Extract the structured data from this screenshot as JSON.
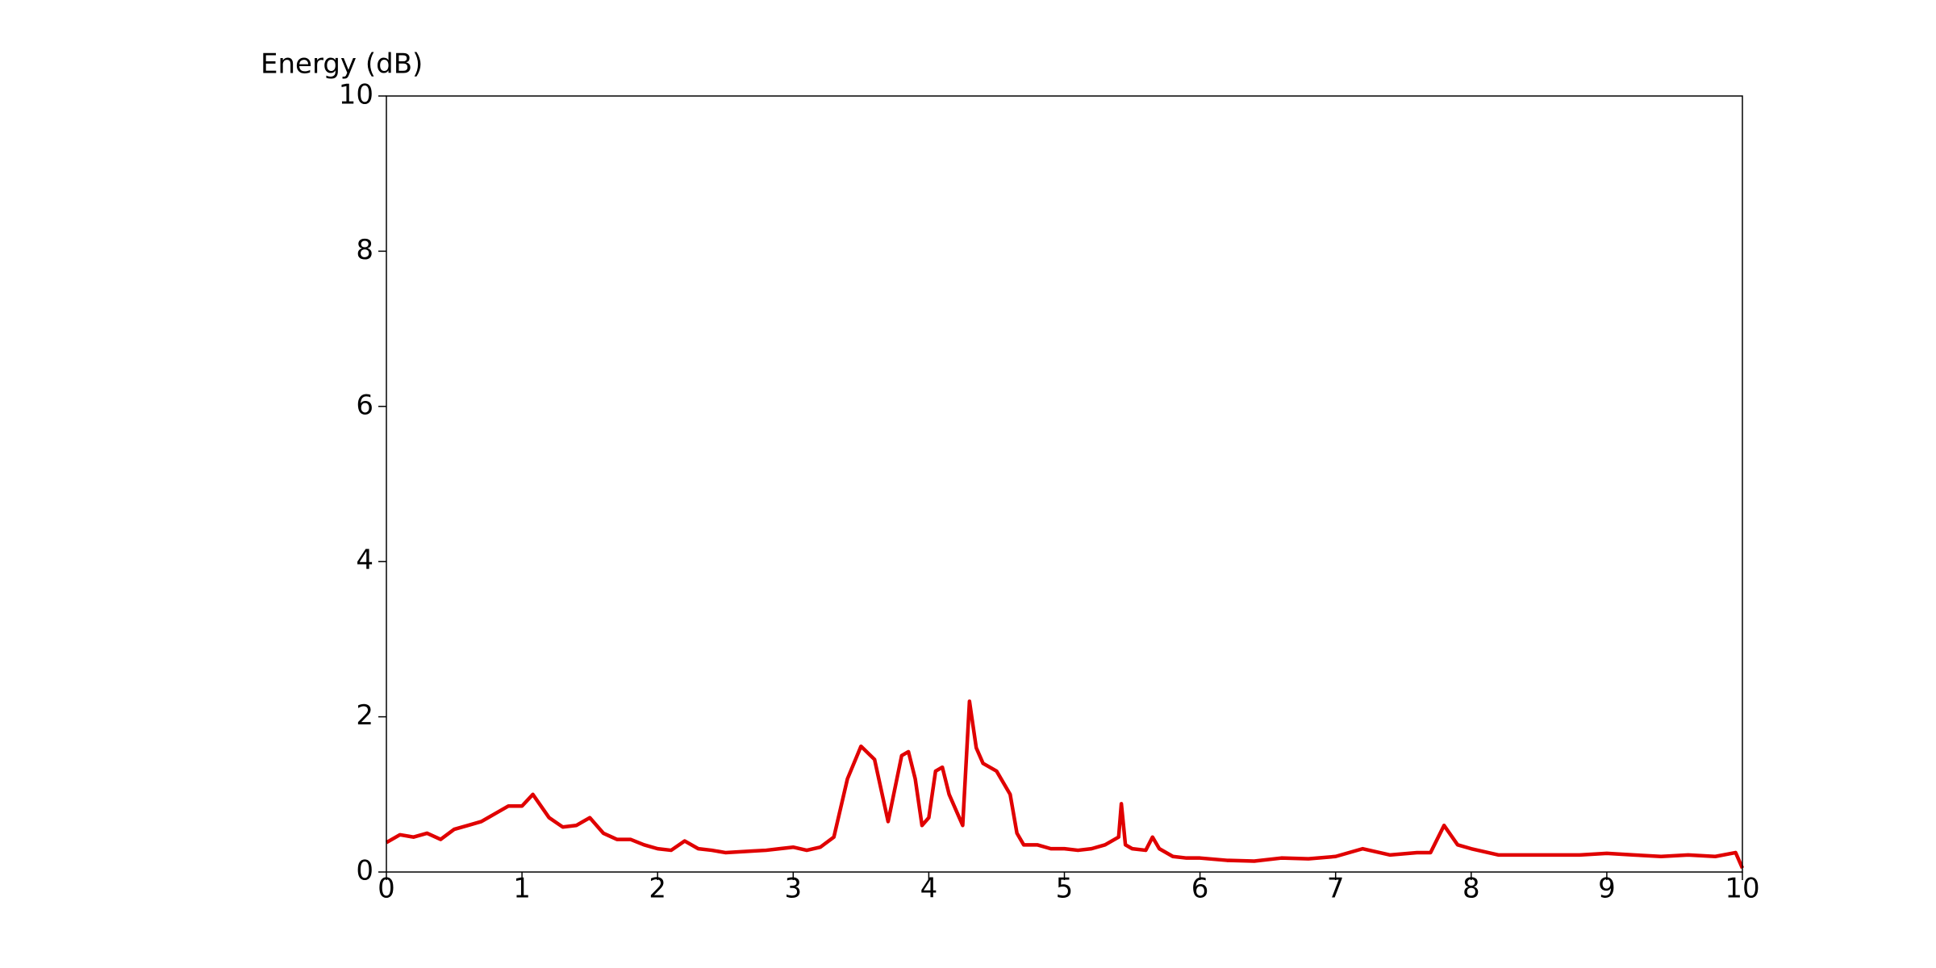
{
  "chart_data": {
    "type": "line",
    "y_label": "Energy (dB)",
    "x": [
      0,
      0.1,
      0.2,
      0.3,
      0.4,
      0.5,
      0.6,
      0.7,
      0.8,
      0.9,
      1.0,
      1.08,
      1.2,
      1.3,
      1.4,
      1.5,
      1.6,
      1.7,
      1.8,
      1.9,
      2.0,
      2.1,
      2.2,
      2.3,
      2.4,
      2.5,
      2.6,
      2.7,
      2.8,
      2.9,
      3.0,
      3.1,
      3.2,
      3.3,
      3.4,
      3.5,
      3.6,
      3.7,
      3.8,
      3.85,
      3.9,
      3.95,
      4.0,
      4.05,
      4.1,
      4.15,
      4.2,
      4.25,
      4.3,
      4.35,
      4.4,
      4.5,
      4.6,
      4.65,
      4.7,
      4.8,
      4.9,
      5.0,
      5.1,
      5.2,
      5.3,
      5.4,
      5.42,
      5.45,
      5.5,
      5.6,
      5.65,
      5.7,
      5.8,
      5.9,
      6.0,
      6.2,
      6.4,
      6.6,
      6.8,
      7.0,
      7.2,
      7.4,
      7.6,
      7.7,
      7.8,
      7.9,
      8.0,
      8.2,
      8.4,
      8.6,
      8.8,
      9.0,
      9.2,
      9.4,
      9.6,
      9.8,
      9.95,
      10.0
    ],
    "series": [
      {
        "color": "#e00000",
        "values": [
          0.38,
          0.48,
          0.45,
          0.5,
          0.42,
          0.55,
          0.6,
          0.65,
          0.75,
          0.85,
          0.85,
          1.0,
          0.7,
          0.58,
          0.6,
          0.7,
          0.5,
          0.42,
          0.42,
          0.35,
          0.3,
          0.28,
          0.4,
          0.3,
          0.28,
          0.25,
          0.26,
          0.27,
          0.28,
          0.3,
          0.32,
          0.28,
          0.32,
          0.45,
          1.2,
          1.62,
          1.45,
          0.65,
          1.5,
          1.55,
          1.2,
          0.6,
          0.7,
          1.3,
          1.35,
          1.0,
          0.8,
          0.6,
          2.2,
          1.6,
          1.4,
          1.3,
          1.0,
          0.5,
          0.35,
          0.35,
          0.3,
          0.3,
          0.28,
          0.3,
          0.35,
          0.45,
          0.88,
          0.35,
          0.3,
          0.28,
          0.45,
          0.3,
          0.2,
          0.18,
          0.18,
          0.15,
          0.14,
          0.18,
          0.17,
          0.2,
          0.3,
          0.22,
          0.25,
          0.25,
          0.6,
          0.35,
          0.3,
          0.22,
          0.22,
          0.22,
          0.22,
          0.24,
          0.22,
          0.2,
          0.22,
          0.2,
          0.25,
          0.05
        ]
      }
    ],
    "xlim": [
      0,
      10
    ],
    "xticks": [
      0,
      1,
      2,
      3,
      4,
      5,
      6,
      7,
      8,
      9,
      10
    ],
    "ylim": [
      0,
      10
    ],
    "yticks": [
      0,
      2,
      4,
      6,
      8,
      10
    ],
    "grid": false
  }
}
